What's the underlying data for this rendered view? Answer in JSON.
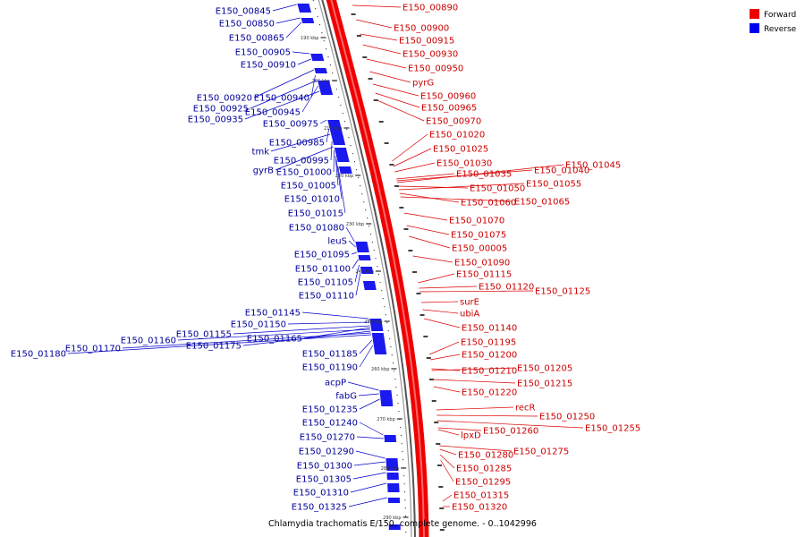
{
  "title": "Chlamydia trachomatis E/150, complete genome. - 0..1042996",
  "legend": [
    {
      "label": "Forward",
      "color": "#ee0000"
    },
    {
      "label": "Reverse",
      "color": "#0000ee"
    }
  ],
  "colors": {
    "forward_label": "#cc0000",
    "reverse_label": "#000099",
    "forward_feature": "#ee0000",
    "reverse_feature": "#1a1aee",
    "backbone": "#888888"
  },
  "ticks": [
    "190 kbp",
    "200 kbp",
    "210 kbp",
    "220 kbp",
    "230 kbp",
    "240 kbp",
    "250 kbp",
    "260 kbp",
    "270 kbp",
    "280 kbp",
    "290 kbp"
  ],
  "reverse_labels": [
    "E150_00845",
    "E150_00850",
    "E150_00865",
    "E150_00905",
    "E150_00910",
    "E150_00920",
    "E150_00940",
    "E150_00925",
    "E150_00945",
    "E150_00935",
    "E150_00975",
    "E150_00985",
    "tmk",
    "E150_00995",
    "gyrB",
    "E150_01000",
    "E150_01005",
    "E150_01010",
    "E150_01015",
    "E150_01080",
    "leuS",
    "E150_01095",
    "E150_01100",
    "E150_01105",
    "E150_01110",
    "E150_01145",
    "E150_01150",
    "E150_01155",
    "E150_01165",
    "E150_01160",
    "E150_01175",
    "E150_01170",
    "E150_01180",
    "E150_01185",
    "E150_01190",
    "acpP",
    "fabG",
    "E150_01235",
    "E150_01240",
    "E150_01270",
    "E150_01290",
    "E150_01300",
    "E150_01305",
    "E150_01310",
    "E150_01325"
  ],
  "forward_labels": [
    "E150_00890",
    "E150_00900",
    "E150_00915",
    "E150_00930",
    "E150_00950",
    "pyrG",
    "E150_00960",
    "E150_00965",
    "E150_00970",
    "E150_01020",
    "E150_01025",
    "E150_01030",
    "E150_01035",
    "E150_01040",
    "E150_01045",
    "E150_01050",
    "E150_01055",
    "E150_01060",
    "E150_01065",
    "E150_01070",
    "E150_01075",
    "E150_00005",
    "E150_01090",
    "E150_01115",
    "E150_01120",
    "E150_01125",
    "surE",
    "ubiA",
    "E150_01140",
    "E150_01195",
    "E150_01200",
    "E150_01210",
    "E150_01205",
    "E150_01215",
    "E150_01220",
    "recR",
    "E150_01250",
    "E150_01255",
    "lpxD",
    "E150_01260",
    "E150_01275",
    "E150_01280",
    "E150_01285",
    "E150_01295",
    "E150_01315",
    "E150_01320"
  ]
}
